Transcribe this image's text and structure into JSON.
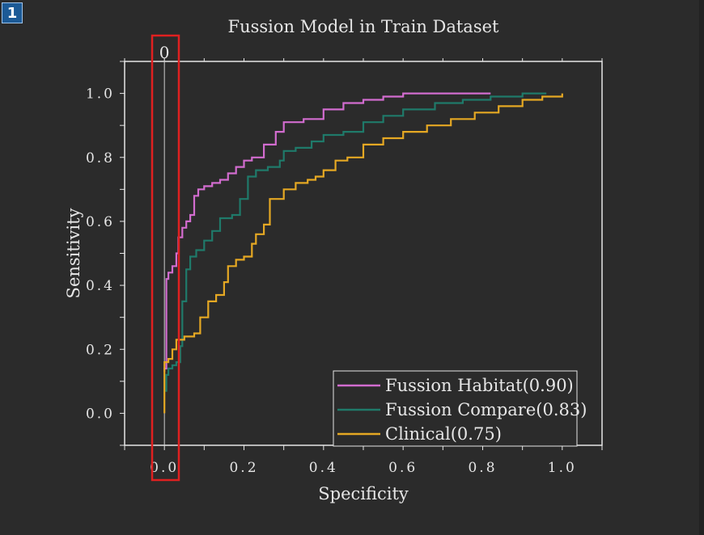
{
  "badge": "1",
  "marker_label": "0",
  "colors": {
    "background": "#2b2b2b",
    "axes": "#e6e6e6",
    "highlight_box": "#e02020",
    "series": [
      "#d26ccf",
      "#1f7a6a",
      "#e5a823"
    ]
  },
  "chart_data": {
    "type": "line",
    "title": "Fussion Model in Train Dataset",
    "xlabel": "Specificity",
    "ylabel": "Sensitivity",
    "xlim": [
      -0.1,
      1.1
    ],
    "ylim": [
      -0.1,
      1.1
    ],
    "xticks": [
      "0.0",
      "0.2",
      "0.4",
      "0.6",
      "0.8",
      "1.0"
    ],
    "yticks": [
      "0.0",
      "0.2",
      "0.4",
      "0.6",
      "0.8",
      "1.0"
    ],
    "legend_position": "bottom-right",
    "vertical_marker": {
      "x": 0,
      "label": "0"
    },
    "series": [
      {
        "name": "Fussion Habitat(0.90)",
        "color": "#d26ccf",
        "points": [
          [
            0,
            0.13
          ],
          [
            0,
            0.14
          ],
          [
            0.005,
            0.42
          ],
          [
            0.01,
            0.44
          ],
          [
            0.02,
            0.46
          ],
          [
            0.03,
            0.5
          ],
          [
            0.035,
            0.55
          ],
          [
            0.045,
            0.58
          ],
          [
            0.055,
            0.6
          ],
          [
            0.065,
            0.62
          ],
          [
            0.075,
            0.68
          ],
          [
            0.085,
            0.7
          ],
          [
            0.1,
            0.71
          ],
          [
            0.12,
            0.72
          ],
          [
            0.14,
            0.73
          ],
          [
            0.16,
            0.75
          ],
          [
            0.18,
            0.77
          ],
          [
            0.2,
            0.79
          ],
          [
            0.22,
            0.8
          ],
          [
            0.25,
            0.84
          ],
          [
            0.28,
            0.88
          ],
          [
            0.3,
            0.91
          ],
          [
            0.35,
            0.92
          ],
          [
            0.4,
            0.95
          ],
          [
            0.45,
            0.97
          ],
          [
            0.5,
            0.98
          ],
          [
            0.55,
            0.99
          ],
          [
            0.6,
            1.0
          ],
          [
            0.82,
            1.0
          ]
        ]
      },
      {
        "name": "Fussion Compare(0.83)",
        "color": "#1f7a6a",
        "points": [
          [
            0,
            0.07
          ],
          [
            0.005,
            0.12
          ],
          [
            0.01,
            0.14
          ],
          [
            0.02,
            0.15
          ],
          [
            0.03,
            0.16
          ],
          [
            0.04,
            0.21
          ],
          [
            0.045,
            0.35
          ],
          [
            0.055,
            0.45
          ],
          [
            0.065,
            0.49
          ],
          [
            0.08,
            0.51
          ],
          [
            0.1,
            0.54
          ],
          [
            0.12,
            0.57
          ],
          [
            0.14,
            0.61
          ],
          [
            0.17,
            0.62
          ],
          [
            0.19,
            0.67
          ],
          [
            0.21,
            0.74
          ],
          [
            0.23,
            0.76
          ],
          [
            0.26,
            0.77
          ],
          [
            0.29,
            0.79
          ],
          [
            0.3,
            0.82
          ],
          [
            0.33,
            0.83
          ],
          [
            0.37,
            0.85
          ],
          [
            0.4,
            0.87
          ],
          [
            0.45,
            0.88
          ],
          [
            0.5,
            0.91
          ],
          [
            0.55,
            0.93
          ],
          [
            0.6,
            0.95
          ],
          [
            0.68,
            0.97
          ],
          [
            0.75,
            0.98
          ],
          [
            0.82,
            0.99
          ],
          [
            0.9,
            1.0
          ],
          [
            0.96,
            1.0
          ]
        ]
      },
      {
        "name": "Clinical(0.75)",
        "color": "#e5a823",
        "points": [
          [
            0,
            0.0
          ],
          [
            0,
            0.16
          ],
          [
            0.01,
            0.17
          ],
          [
            0.02,
            0.2
          ],
          [
            0.03,
            0.23
          ],
          [
            0.05,
            0.24
          ],
          [
            0.075,
            0.25
          ],
          [
            0.09,
            0.3
          ],
          [
            0.11,
            0.35
          ],
          [
            0.13,
            0.37
          ],
          [
            0.15,
            0.41
          ],
          [
            0.16,
            0.46
          ],
          [
            0.18,
            0.48
          ],
          [
            0.2,
            0.49
          ],
          [
            0.22,
            0.53
          ],
          [
            0.23,
            0.56
          ],
          [
            0.25,
            0.59
          ],
          [
            0.265,
            0.67
          ],
          [
            0.3,
            0.7
          ],
          [
            0.33,
            0.72
          ],
          [
            0.36,
            0.73
          ],
          [
            0.38,
            0.74
          ],
          [
            0.4,
            0.76
          ],
          [
            0.43,
            0.79
          ],
          [
            0.46,
            0.8
          ],
          [
            0.5,
            0.84
          ],
          [
            0.55,
            0.86
          ],
          [
            0.6,
            0.88
          ],
          [
            0.66,
            0.9
          ],
          [
            0.72,
            0.92
          ],
          [
            0.78,
            0.94
          ],
          [
            0.84,
            0.96
          ],
          [
            0.9,
            0.98
          ],
          [
            0.95,
            0.99
          ],
          [
            1.0,
            1.0
          ]
        ]
      }
    ]
  }
}
